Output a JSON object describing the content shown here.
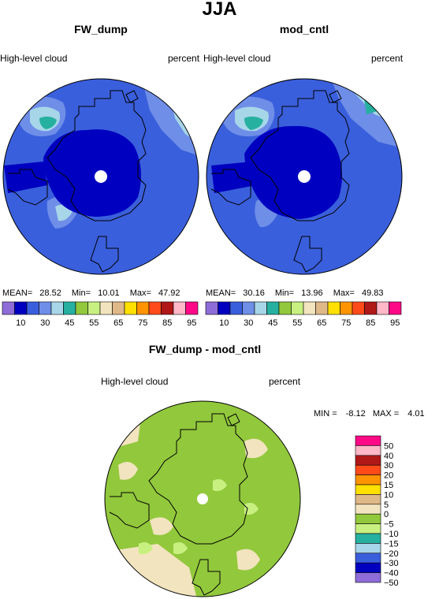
{
  "chart_data": [
    {
      "type": "heatmap",
      "title": "FW_dump",
      "variable": "High-level cloud",
      "units": "percent",
      "stats": {
        "mean_label": "MEAN=",
        "mean": "28.52",
        "min_label": "Min=",
        "min": "10.01",
        "max_label": "Max=",
        "max": "47.92"
      },
      "colorbar": {
        "levels": [
          10,
          30,
          45,
          55,
          65,
          75,
          85,
          95
        ],
        "tick_labels": [
          "10",
          "30",
          "45",
          "55",
          "65",
          "75",
          "85",
          "95"
        ],
        "colors": [
          "#8e6dd8",
          "#0000c0",
          "#3a5fdc",
          "#6e8ee8",
          "#a7d6e8",
          "#26b0a0",
          "#92c83c",
          "#c8f080",
          "#f2e4be",
          "#dfb888",
          "#ffe000",
          "#ff9400",
          "#ff4a1a",
          "#b01818",
          "#ffb8c8",
          "#ff0888"
        ]
      }
    },
    {
      "type": "heatmap",
      "title": "mod_cntl",
      "variable": "High-level cloud",
      "units": "percent",
      "stats": {
        "mean_label": "MEAN=",
        "mean": "30.16",
        "min_label": "Min=",
        "min": "13.96",
        "max_label": "Max=",
        "max": "49.83"
      },
      "colorbar": {
        "levels": [
          10,
          30,
          45,
          55,
          65,
          75,
          85,
          95
        ],
        "tick_labels": [
          "10",
          "30",
          "45",
          "55",
          "65",
          "75",
          "85",
          "95"
        ],
        "colors": [
          "#8e6dd8",
          "#0000c0",
          "#3a5fdc",
          "#6e8ee8",
          "#a7d6e8",
          "#26b0a0",
          "#92c83c",
          "#c8f080",
          "#f2e4be",
          "#dfb888",
          "#ffe000",
          "#ff9400",
          "#ff4a1a",
          "#b01818",
          "#ffb8c8",
          "#ff0888"
        ]
      }
    },
    {
      "type": "heatmap",
      "title": "FW_dump - mod_cntl",
      "variable": "High-level cloud",
      "units": "percent",
      "stats": {
        "min_label": "MIN =",
        "min": "-8.12",
        "max_label": "MAX =",
        "max": "4.01"
      },
      "colorbar": {
        "tick_labels": [
          "50",
          "40",
          "30",
          "20",
          "15",
          "10",
          "5",
          "0",
          "−5",
          "−10",
          "−15",
          "−20",
          "−30",
          "−40",
          "−50"
        ],
        "colors": [
          "#ff0888",
          "#ffb8c8",
          "#b01818",
          "#ff4a1a",
          "#ff9400",
          "#ffe000",
          "#dfb888",
          "#f2e4be",
          "#92c83c",
          "#c8f080",
          "#26b0a0",
          "#a7d6e8",
          "#3a5fdc",
          "#0000c0",
          "#8e6dd8"
        ]
      }
    }
  ],
  "page": {
    "season_title": "JJA"
  }
}
